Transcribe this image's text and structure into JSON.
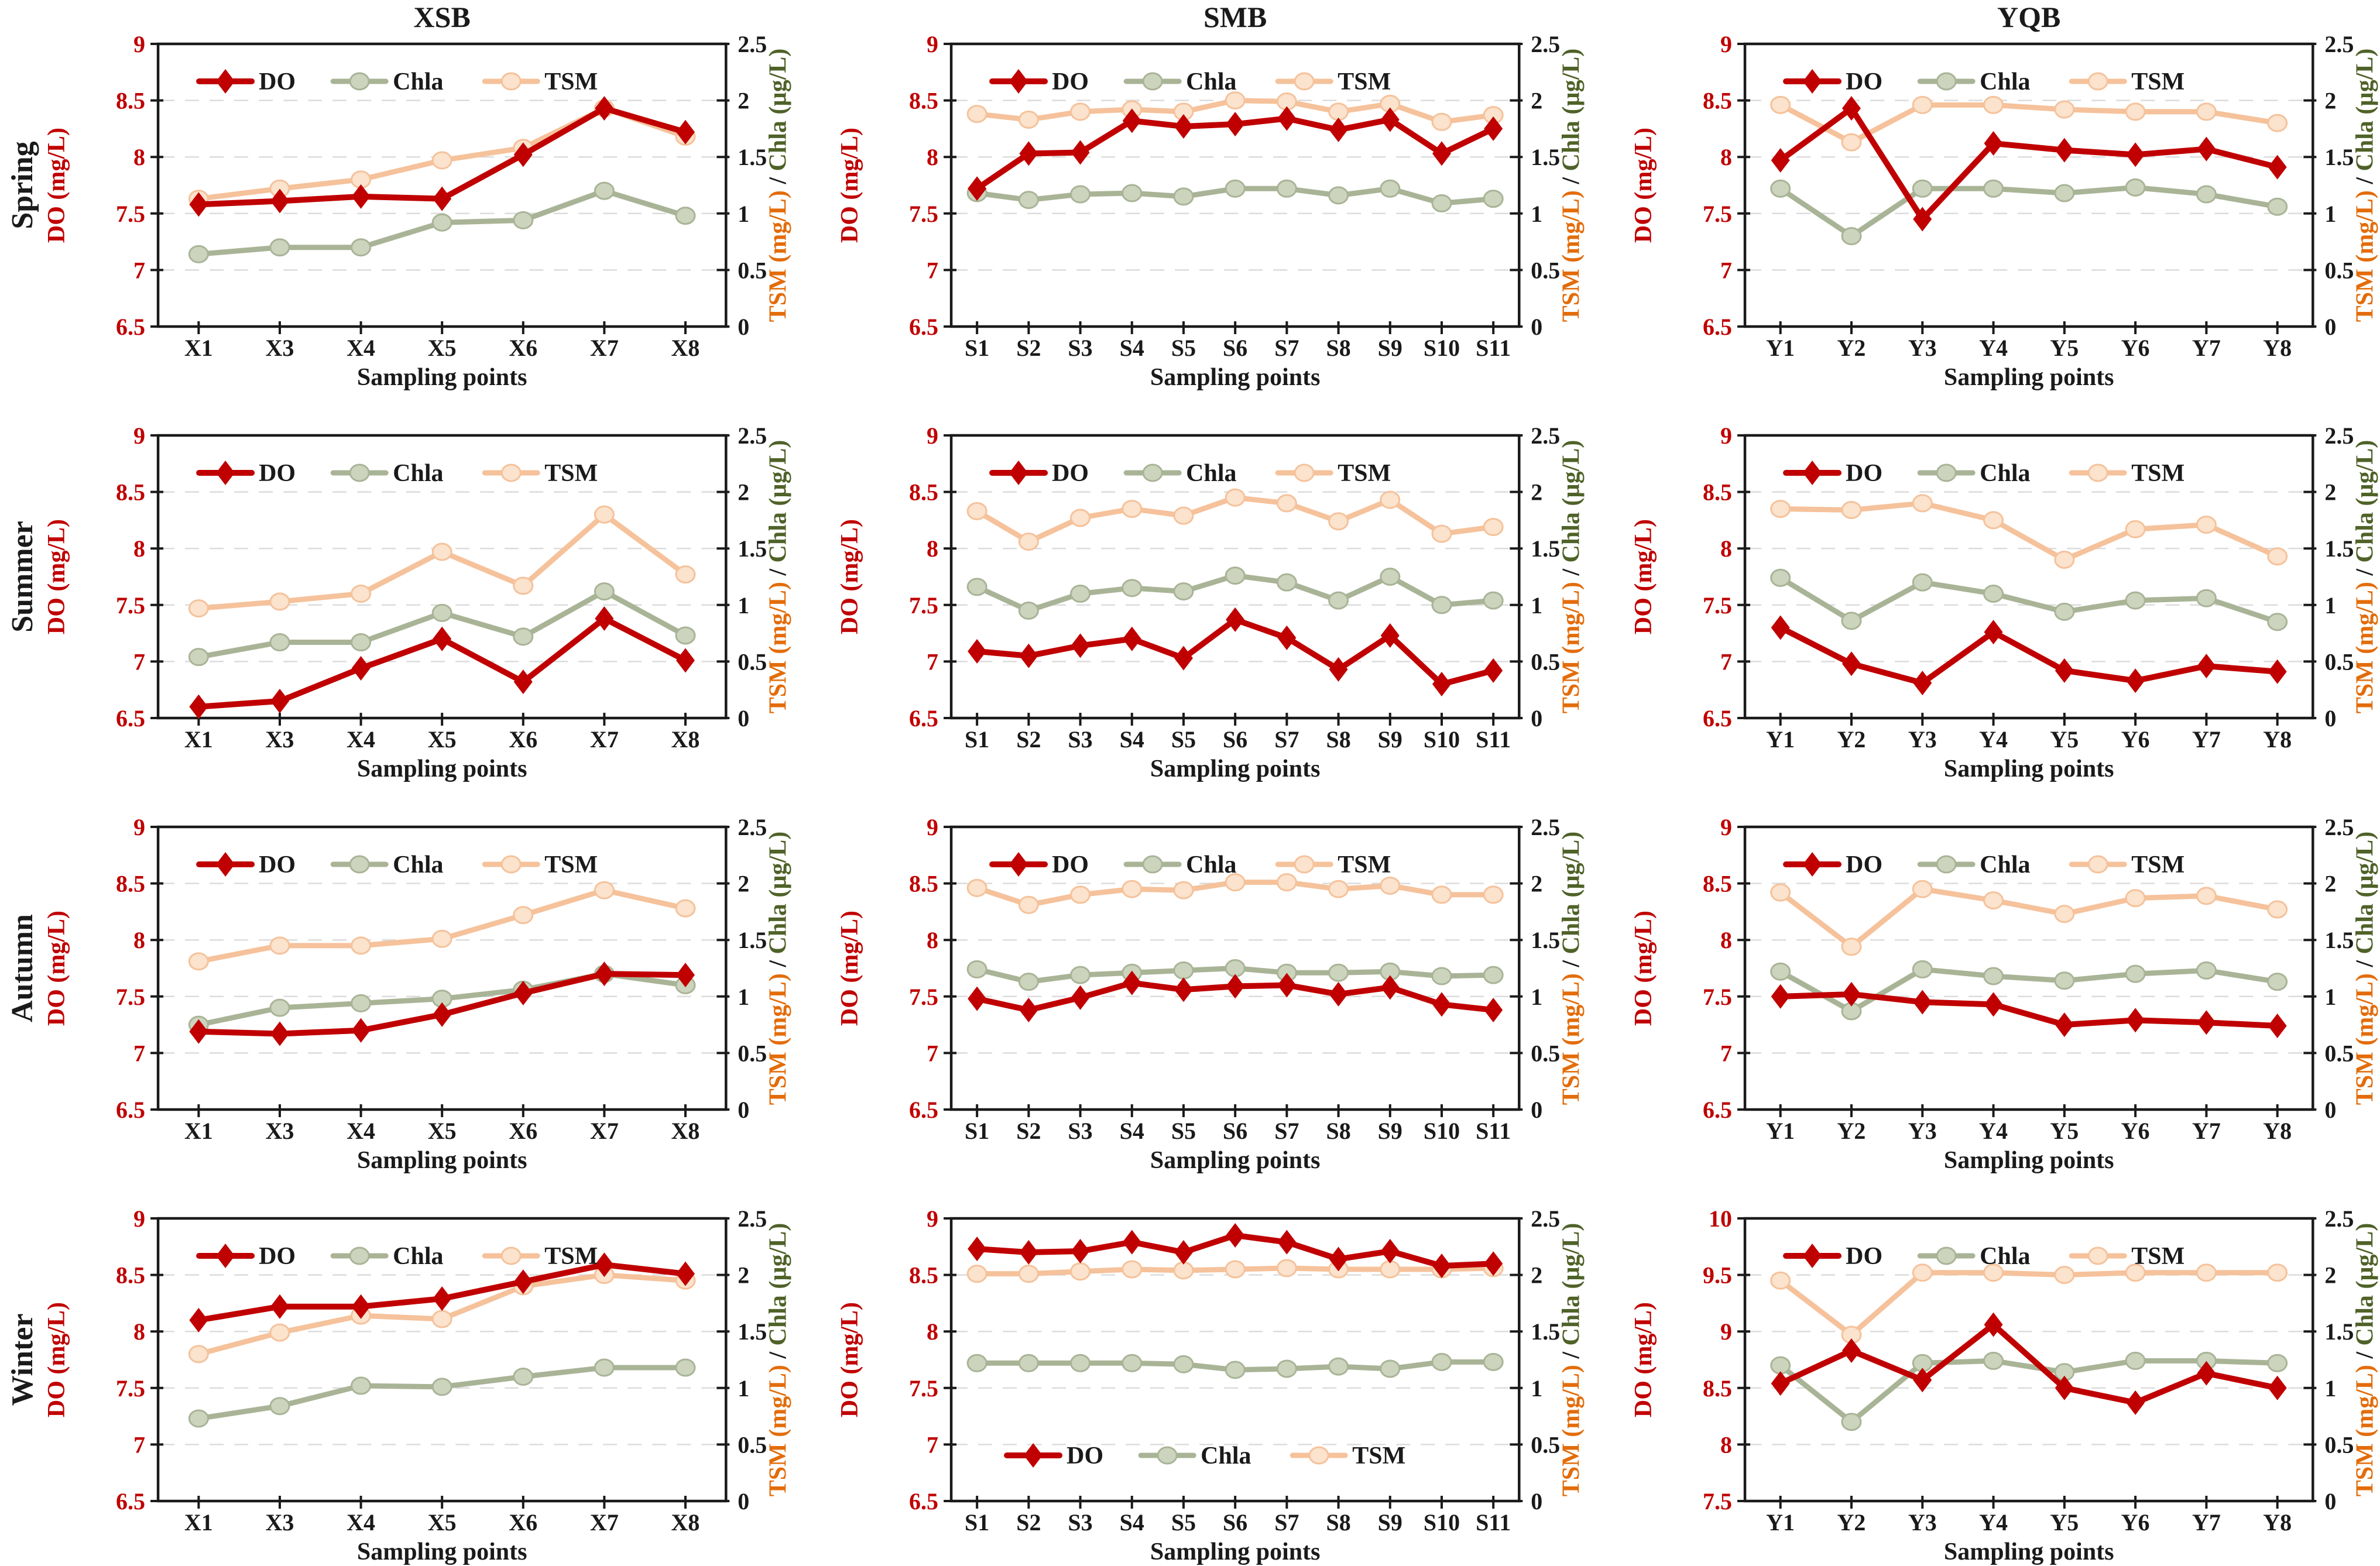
{
  "figure": {
    "column_titles": [
      "XSB",
      "SMB",
      "YQB"
    ],
    "row_labels": [
      "Spring",
      "Summer",
      "Autumn",
      "Winter"
    ],
    "x_axis_label": "Sampling points",
    "left_axis_label": "DO (mg/L)",
    "right_axis_label_parts": [
      {
        "text": "TSM (mg/L)",
        "color": "#e36c0a"
      },
      {
        "text": " / ",
        "color": "#1a1a1a"
      },
      {
        "text": "Chla (µg/L)",
        "color": "#4f6228"
      }
    ],
    "legend_labels": [
      "DO",
      "Chla",
      "TSM"
    ]
  },
  "colors": {
    "do_line": "#c00000",
    "chla_line": "#a9b497",
    "chla_marker_fill": "#ccd4bd",
    "tsm_line": "#f5c29b",
    "tsm_marker_fill": "#fbe3cd",
    "left_tick_text": "#c00000",
    "right_tick_text": "#1a1a1a",
    "frame": "#1a1a1a",
    "gridline": "#dcdcdc",
    "title_text": "#1a1a1a"
  },
  "series_styles": {
    "DO": {
      "color": "#c00000",
      "marker": "diamond",
      "marker_fill": "#c00000"
    },
    "Chla": {
      "color": "#a9b497",
      "marker": "circle",
      "marker_fill": "#ccd4bd"
    },
    "TSM": {
      "color": "#f5c29b",
      "marker": "circle",
      "marker_fill": "#fbe3cd"
    }
  },
  "chart_data": [
    {
      "type": "line",
      "row": "Spring",
      "col": "XSB",
      "legend_position": "top",
      "categories": [
        "X1",
        "X3",
        "X4",
        "X5",
        "X6",
        "X7",
        "X8"
      ],
      "left_ylim": [
        6.5,
        9
      ],
      "left_ticks": [
        "6.5",
        "7",
        "7.5",
        "8",
        "8.5",
        "9"
      ],
      "right_ylim": [
        0,
        2.5
      ],
      "right_ticks": [
        "0",
        "0.5",
        "1",
        "1.5",
        "2",
        "2.5"
      ],
      "series": [
        {
          "name": "DO",
          "axis": "left",
          "values": [
            7.58,
            7.61,
            7.65,
            7.63,
            8.02,
            8.43,
            8.22
          ]
        },
        {
          "name": "Chla",
          "axis": "right",
          "values": [
            0.64,
            0.7,
            0.7,
            0.92,
            0.94,
            1.2,
            0.98
          ]
        },
        {
          "name": "TSM",
          "axis": "right",
          "values": [
            1.13,
            1.22,
            1.3,
            1.47,
            1.58,
            1.93,
            1.68
          ]
        }
      ]
    },
    {
      "type": "line",
      "row": "Spring",
      "col": "SMB",
      "legend_position": "top",
      "categories": [
        "S1",
        "S2",
        "S3",
        "S4",
        "S5",
        "S6",
        "S7",
        "S8",
        "S9",
        "S10",
        "S11"
      ],
      "left_ylim": [
        6.5,
        9
      ],
      "left_ticks": [
        "6.5",
        "7",
        "7.5",
        "8",
        "8.5",
        "9"
      ],
      "right_ylim": [
        0,
        2.5
      ],
      "right_ticks": [
        "0",
        "0.5",
        "1",
        "1.5",
        "2",
        "2.5"
      ],
      "series": [
        {
          "name": "DO",
          "axis": "left",
          "values": [
            7.72,
            8.03,
            8.04,
            8.32,
            8.27,
            8.29,
            8.34,
            8.24,
            8.33,
            8.03,
            8.25
          ]
        },
        {
          "name": "Chla",
          "axis": "right",
          "values": [
            1.18,
            1.12,
            1.17,
            1.18,
            1.15,
            1.22,
            1.22,
            1.16,
            1.22,
            1.09,
            1.13
          ]
        },
        {
          "name": "TSM",
          "axis": "right",
          "values": [
            1.88,
            1.83,
            1.9,
            1.92,
            1.9,
            2.0,
            1.99,
            1.9,
            1.97,
            1.81,
            1.87
          ]
        }
      ]
    },
    {
      "type": "line",
      "row": "Spring",
      "col": "YQB",
      "legend_position": "top",
      "categories": [
        "Y1",
        "Y2",
        "Y3",
        "Y4",
        "Y5",
        "Y6",
        "Y7",
        "Y8"
      ],
      "left_ylim": [
        6.5,
        9
      ],
      "left_ticks": [
        "6.5",
        "7",
        "7.5",
        "8",
        "8.5",
        "9"
      ],
      "right_ylim": [
        0,
        2.5
      ],
      "right_ticks": [
        "0",
        "0.5",
        "1",
        "1.5",
        "2",
        "2.5"
      ],
      "series": [
        {
          "name": "DO",
          "axis": "left",
          "values": [
            7.97,
            8.43,
            7.45,
            8.12,
            8.06,
            8.02,
            8.07,
            7.91
          ]
        },
        {
          "name": "Chla",
          "axis": "right",
          "values": [
            1.22,
            0.8,
            1.22,
            1.22,
            1.18,
            1.23,
            1.17,
            1.06
          ]
        },
        {
          "name": "TSM",
          "axis": "right",
          "values": [
            1.96,
            1.63,
            1.96,
            1.96,
            1.92,
            1.9,
            1.9,
            1.8
          ]
        }
      ]
    },
    {
      "type": "line",
      "row": "Summer",
      "col": "XSB",
      "legend_position": "top",
      "categories": [
        "X1",
        "X3",
        "X4",
        "X5",
        "X6",
        "X7",
        "X8"
      ],
      "left_ylim": [
        6.5,
        9
      ],
      "left_ticks": [
        "6.5",
        "7",
        "7.5",
        "8",
        "8.5",
        "9"
      ],
      "right_ylim": [
        0,
        2.5
      ],
      "right_ticks": [
        "0",
        "0.5",
        "1",
        "1.5",
        "2",
        "2.5"
      ],
      "series": [
        {
          "name": "DO",
          "axis": "left",
          "values": [
            6.6,
            6.65,
            6.94,
            7.2,
            6.82,
            7.38,
            7.01
          ]
        },
        {
          "name": "Chla",
          "axis": "right",
          "values": [
            0.54,
            0.67,
            0.67,
            0.93,
            0.72,
            1.12,
            0.73
          ]
        },
        {
          "name": "TSM",
          "axis": "right",
          "values": [
            0.97,
            1.03,
            1.1,
            1.47,
            1.17,
            1.8,
            1.27
          ]
        }
      ]
    },
    {
      "type": "line",
      "row": "Summer",
      "col": "SMB",
      "legend_position": "top",
      "categories": [
        "S1",
        "S2",
        "S3",
        "S4",
        "S5",
        "S6",
        "S7",
        "S8",
        "S9",
        "S10",
        "S11"
      ],
      "left_ylim": [
        6.5,
        9
      ],
      "left_ticks": [
        "6.5",
        "7",
        "7.5",
        "8",
        "8.5",
        "9"
      ],
      "right_ylim": [
        0,
        2.5
      ],
      "right_ticks": [
        "0",
        "0.5",
        "1",
        "1.5",
        "2",
        "2.5"
      ],
      "series": [
        {
          "name": "DO",
          "axis": "left",
          "values": [
            7.09,
            7.05,
            7.14,
            7.2,
            7.03,
            7.37,
            7.21,
            6.93,
            7.23,
            6.8,
            6.92
          ]
        },
        {
          "name": "Chla",
          "axis": "right",
          "values": [
            1.16,
            0.95,
            1.1,
            1.15,
            1.12,
            1.26,
            1.2,
            1.04,
            1.25,
            1.0,
            1.04
          ]
        },
        {
          "name": "TSM",
          "axis": "right",
          "values": [
            1.83,
            1.56,
            1.77,
            1.85,
            1.79,
            1.95,
            1.9,
            1.74,
            1.93,
            1.63,
            1.69
          ]
        }
      ]
    },
    {
      "type": "line",
      "row": "Summer",
      "col": "YQB",
      "legend_position": "top",
      "categories": [
        "Y1",
        "Y2",
        "Y3",
        "Y4",
        "Y5",
        "Y6",
        "Y7",
        "Y8"
      ],
      "left_ylim": [
        6.5,
        9
      ],
      "left_ticks": [
        "6.5",
        "7",
        "7.5",
        "8",
        "8.5",
        "9"
      ],
      "right_ylim": [
        0,
        2.5
      ],
      "right_ticks": [
        "0",
        "0.5",
        "1",
        "1.5",
        "2",
        "2.5"
      ],
      "series": [
        {
          "name": "DO",
          "axis": "left",
          "values": [
            7.3,
            6.98,
            6.81,
            7.26,
            6.92,
            6.83,
            6.96,
            6.91
          ]
        },
        {
          "name": "Chla",
          "axis": "right",
          "values": [
            1.24,
            0.86,
            1.2,
            1.1,
            0.94,
            1.04,
            1.06,
            0.85
          ]
        },
        {
          "name": "TSM",
          "axis": "right",
          "values": [
            1.85,
            1.84,
            1.9,
            1.75,
            1.4,
            1.67,
            1.71,
            1.43
          ]
        }
      ]
    },
    {
      "type": "line",
      "row": "Autumn",
      "col": "XSB",
      "legend_position": "top",
      "categories": [
        "X1",
        "X3",
        "X4",
        "X5",
        "X6",
        "X7",
        "X8"
      ],
      "left_ylim": [
        6.5,
        9
      ],
      "left_ticks": [
        "6.5",
        "7",
        "7.5",
        "8",
        "8.5",
        "9"
      ],
      "right_ylim": [
        0,
        2.5
      ],
      "right_ticks": [
        "0",
        "0.5",
        "1",
        "1.5",
        "2",
        "2.5"
      ],
      "series": [
        {
          "name": "DO",
          "axis": "left",
          "values": [
            7.19,
            7.17,
            7.2,
            7.34,
            7.53,
            7.7,
            7.69
          ]
        },
        {
          "name": "Chla",
          "axis": "right",
          "values": [
            0.75,
            0.9,
            0.94,
            0.98,
            1.06,
            1.2,
            1.1
          ]
        },
        {
          "name": "TSM",
          "axis": "right",
          "values": [
            1.31,
            1.45,
            1.45,
            1.51,
            1.72,
            1.94,
            1.78
          ]
        }
      ]
    },
    {
      "type": "line",
      "row": "Autumn",
      "col": "SMB",
      "legend_position": "top",
      "categories": [
        "S1",
        "S2",
        "S3",
        "S4",
        "S5",
        "S6",
        "S7",
        "S8",
        "S9",
        "S10",
        "S11"
      ],
      "left_ylim": [
        6.5,
        9
      ],
      "left_ticks": [
        "6.5",
        "7",
        "7.5",
        "8",
        "8.5",
        "9"
      ],
      "right_ylim": [
        0,
        2.5
      ],
      "right_ticks": [
        "0",
        "0.5",
        "1",
        "1.5",
        "2",
        "2.5"
      ],
      "series": [
        {
          "name": "DO",
          "axis": "left",
          "values": [
            7.48,
            7.38,
            7.49,
            7.62,
            7.56,
            7.59,
            7.6,
            7.52,
            7.58,
            7.43,
            7.38
          ]
        },
        {
          "name": "Chla",
          "axis": "right",
          "values": [
            1.24,
            1.13,
            1.19,
            1.21,
            1.23,
            1.25,
            1.21,
            1.21,
            1.22,
            1.18,
            1.19
          ]
        },
        {
          "name": "TSM",
          "axis": "right",
          "values": [
            1.96,
            1.81,
            1.9,
            1.95,
            1.94,
            2.01,
            2.01,
            1.95,
            1.98,
            1.9,
            1.9
          ]
        }
      ]
    },
    {
      "type": "line",
      "row": "Autumn",
      "col": "YQB",
      "legend_position": "top",
      "categories": [
        "Y1",
        "Y2",
        "Y3",
        "Y4",
        "Y5",
        "Y6",
        "Y7",
        "Y8"
      ],
      "left_ylim": [
        6.5,
        9
      ],
      "left_ticks": [
        "6.5",
        "7",
        "7.5",
        "8",
        "8.5",
        "9"
      ],
      "right_ylim": [
        0,
        2.5
      ],
      "right_ticks": [
        "0",
        "0.5",
        "1",
        "1.5",
        "2",
        "2.5"
      ],
      "series": [
        {
          "name": "DO",
          "axis": "left",
          "values": [
            7.5,
            7.52,
            7.45,
            7.43,
            7.25,
            7.29,
            7.27,
            7.24
          ]
        },
        {
          "name": "Chla",
          "axis": "right",
          "values": [
            1.22,
            0.87,
            1.24,
            1.18,
            1.14,
            1.2,
            1.23,
            1.13
          ]
        },
        {
          "name": "TSM",
          "axis": "right",
          "values": [
            1.92,
            1.44,
            1.95,
            1.85,
            1.73,
            1.87,
            1.89,
            1.77
          ]
        }
      ]
    },
    {
      "type": "line",
      "row": "Winter",
      "col": "XSB",
      "legend_position": "top",
      "categories": [
        "X1",
        "X3",
        "X4",
        "X5",
        "X6",
        "X7",
        "X8"
      ],
      "left_ylim": [
        6.5,
        9
      ],
      "left_ticks": [
        "6.5",
        "7",
        "7.5",
        "8",
        "8.5",
        "9"
      ],
      "right_ylim": [
        0,
        2.5
      ],
      "right_ticks": [
        "0",
        "0.5",
        "1",
        "1.5",
        "2",
        "2.5"
      ],
      "series": [
        {
          "name": "DO",
          "axis": "left",
          "values": [
            8.1,
            8.22,
            8.22,
            8.29,
            8.44,
            8.59,
            8.51
          ]
        },
        {
          "name": "Chla",
          "axis": "right",
          "values": [
            0.73,
            0.84,
            1.02,
            1.01,
            1.1,
            1.18,
            1.18
          ]
        },
        {
          "name": "TSM",
          "axis": "right",
          "values": [
            1.3,
            1.49,
            1.64,
            1.61,
            1.9,
            2.0,
            1.95
          ]
        }
      ]
    },
    {
      "type": "line",
      "row": "Winter",
      "col": "SMB",
      "legend_position": "bottom",
      "categories": [
        "S1",
        "S2",
        "S3",
        "S4",
        "S5",
        "S6",
        "S7",
        "S8",
        "S9",
        "S10",
        "S11"
      ],
      "left_ylim": [
        6.5,
        9
      ],
      "left_ticks": [
        "6.5",
        "7",
        "7.5",
        "8",
        "8.5",
        "9"
      ],
      "right_ylim": [
        0,
        2.5
      ],
      "right_ticks": [
        "0",
        "0.5",
        "1",
        "1.5",
        "2",
        "2.5"
      ],
      "series": [
        {
          "name": "DO",
          "axis": "left",
          "values": [
            8.73,
            8.7,
            8.71,
            8.79,
            8.7,
            8.85,
            8.79,
            8.64,
            8.71,
            8.58,
            8.6
          ]
        },
        {
          "name": "Chla",
          "axis": "right",
          "values": [
            1.22,
            1.22,
            1.22,
            1.22,
            1.21,
            1.16,
            1.17,
            1.19,
            1.17,
            1.23,
            1.23
          ]
        },
        {
          "name": "TSM",
          "axis": "right",
          "values": [
            2.01,
            2.01,
            2.03,
            2.05,
            2.04,
            2.05,
            2.06,
            2.05,
            2.05,
            2.05,
            2.06
          ]
        }
      ]
    },
    {
      "type": "line",
      "row": "Winter",
      "col": "YQB",
      "legend_position": "top",
      "categories": [
        "Y1",
        "Y2",
        "Y3",
        "Y4",
        "Y5",
        "Y6",
        "Y7",
        "Y8"
      ],
      "left_ylim": [
        7.5,
        10
      ],
      "left_ticks": [
        "7.5",
        "8",
        "8.5",
        "9",
        "9.5",
        "10"
      ],
      "right_ylim": [
        0,
        2.5
      ],
      "right_ticks": [
        "0",
        "0.5",
        "1",
        "1.5",
        "2",
        "2.5"
      ],
      "series": [
        {
          "name": "DO",
          "axis": "left",
          "values": [
            8.54,
            8.83,
            8.57,
            9.06,
            8.5,
            8.37,
            8.63,
            8.5
          ]
        },
        {
          "name": "Chla",
          "axis": "right",
          "values": [
            1.2,
            0.7,
            1.22,
            1.24,
            1.14,
            1.24,
            1.24,
            1.22
          ]
        },
        {
          "name": "TSM",
          "axis": "right",
          "values": [
            1.95,
            1.47,
            2.02,
            2.02,
            2.0,
            2.02,
            2.02,
            2.02
          ]
        }
      ]
    }
  ]
}
